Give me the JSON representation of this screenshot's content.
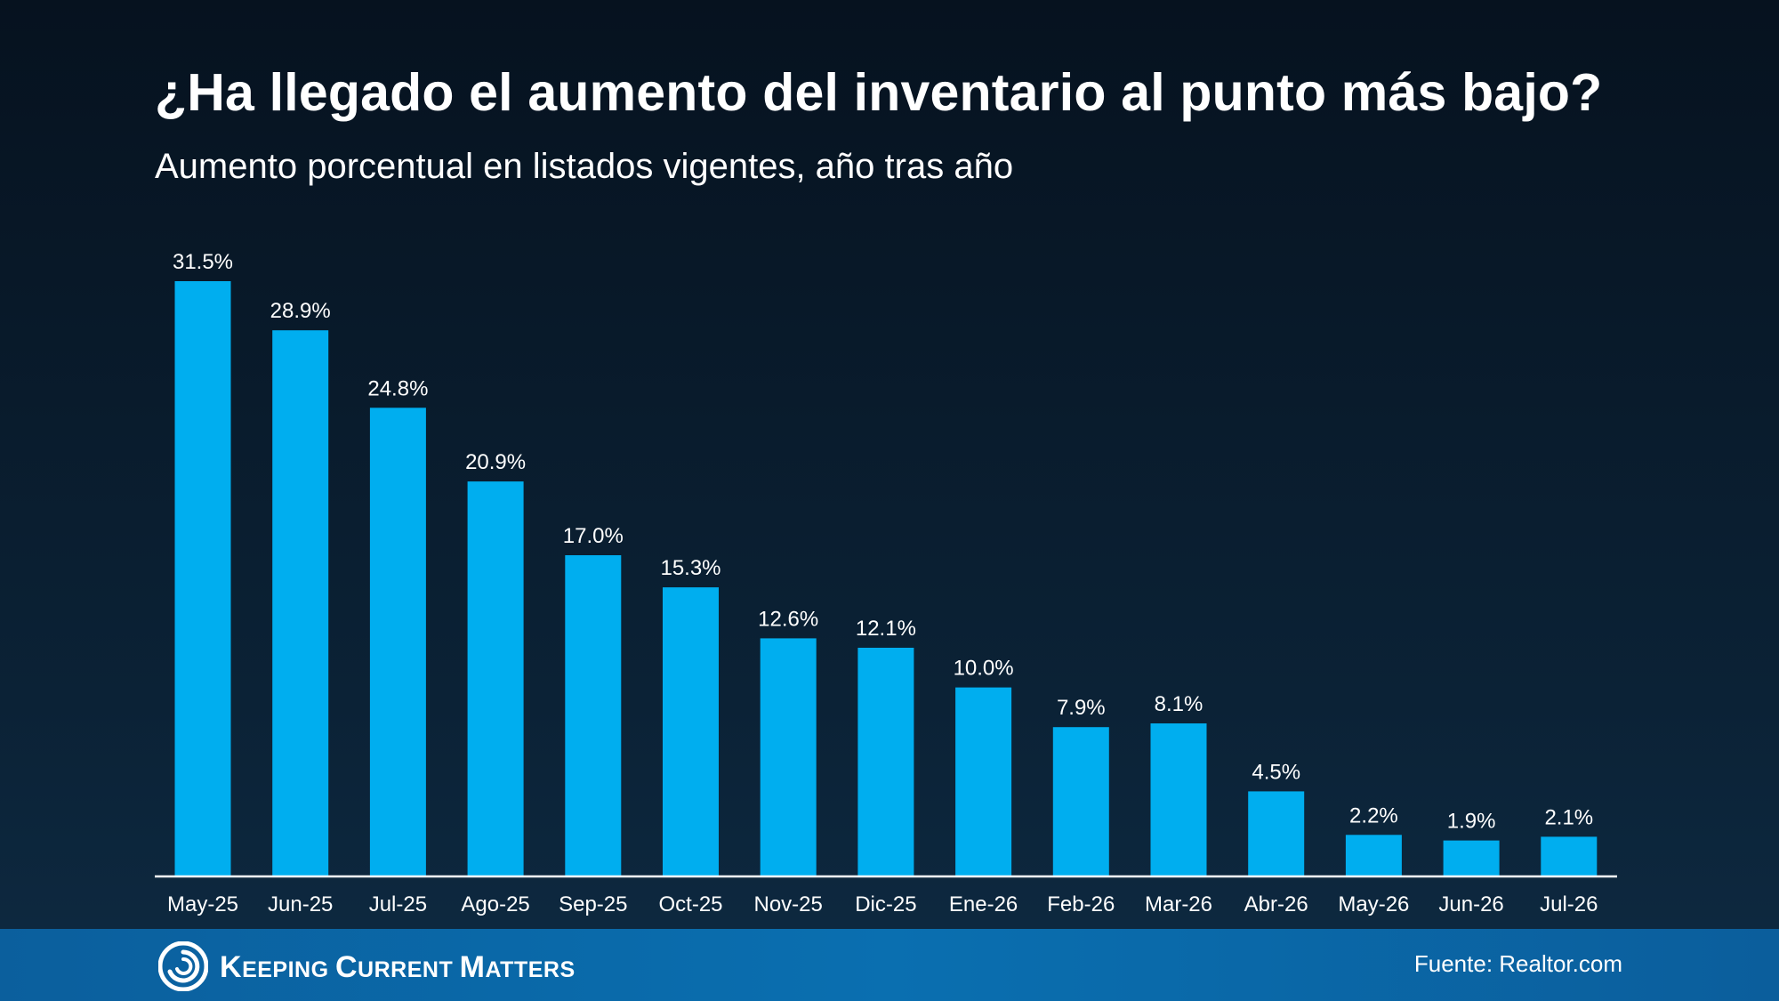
{
  "header": {
    "title": "¿Ha llegado el aumento del inventario al punto más bajo?",
    "subtitle": "Aumento porcentual en listados vigentes, año tras año"
  },
  "chart_data": {
    "type": "bar",
    "title": "¿Ha llegado el aumento del inventario al punto más bajo?",
    "subtitle": "Aumento porcentual en listados vigentes, año tras año",
    "xlabel": "",
    "ylabel": "",
    "categories": [
      "May-25",
      "Jun-25",
      "Jul-25",
      "Ago-25",
      "Sep-25",
      "Oct-25",
      "Nov-25",
      "Dic-25",
      "Ene-26",
      "Feb-26",
      "Mar-26",
      "Abr-26",
      "May-26",
      "Jun-26",
      "Jul-26"
    ],
    "values": [
      31.5,
      28.9,
      24.8,
      20.9,
      17.0,
      15.3,
      12.6,
      12.1,
      10.0,
      7.9,
      8.1,
      4.5,
      2.2,
      1.9,
      2.1
    ],
    "labels": [
      "31.5%",
      "28.9%",
      "24.8%",
      "20.9%",
      "17.0%",
      "15.3%",
      "12.6%",
      "12.1%",
      "10.0%",
      "7.9%",
      "8.1%",
      "4.5%",
      "2.2%",
      "1.9%",
      "2.1%"
    ],
    "ylim": [
      0,
      31.5
    ],
    "grid": false,
    "legend": "none",
    "bar_color": "#00aeef"
  },
  "footer": {
    "brand_parts": [
      {
        "cap": "K",
        "rest": "EEPING "
      },
      {
        "cap": "C",
        "rest": "URRENT "
      },
      {
        "cap": "M",
        "rest": "ATTERS"
      }
    ],
    "source": "Fuente: Realtor.com",
    "logo_icon": "kcm-swirl-icon"
  }
}
